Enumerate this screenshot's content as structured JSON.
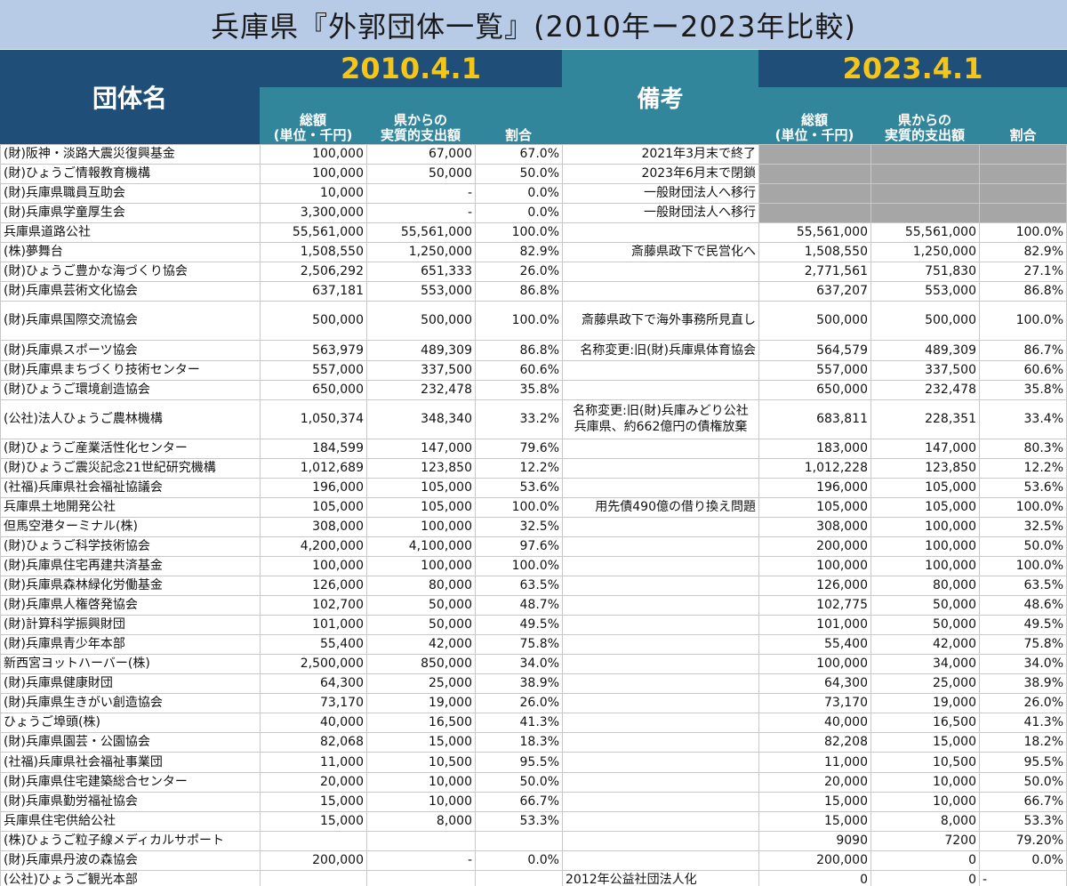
{
  "title": "兵庫県『外郭団体一覧』(2010年ー2023年比較)",
  "header": {
    "name_label": "団体名",
    "note_label": "備考",
    "year_a": "2010.4.1",
    "year_b": "2023.4.1",
    "col_total": "総額\n(単位・千円)",
    "col_pref": "県からの\n実質的支出額",
    "col_ratio": "割合"
  },
  "rows": [
    {
      "name": "(財)阪神・淡路大震災復興基金",
      "t1": "100,000",
      "p1": "67,000",
      "r1": "67.0%",
      "note": "2021年3月末で終了",
      "t2": "",
      "p2": "",
      "r2": "",
      "gray": true
    },
    {
      "name": "(財)ひょうご情報教育機構",
      "t1": "100,000",
      "p1": "50,000",
      "r1": "50.0%",
      "note": "2023年6月末で閉鎖",
      "t2": "",
      "p2": "",
      "r2": "",
      "gray": true
    },
    {
      "name": "(財)兵庫県職員互助会",
      "t1": "10,000",
      "p1": "-",
      "r1": "0.0%",
      "note": "一般財団法人へ移行",
      "t2": "",
      "p2": "",
      "r2": "",
      "gray": true
    },
    {
      "name": "(財)兵庫県学童厚生会",
      "t1": "3,300,000",
      "p1": "-",
      "r1": "0.0%",
      "note": "一般財団法人へ移行",
      "t2": "",
      "p2": "",
      "r2": "",
      "gray": true
    },
    {
      "name": "兵庫県道路公社",
      "t1": "55,561,000",
      "p1": "55,561,000",
      "r1": "100.0%",
      "note": "",
      "t2": "55,561,000",
      "p2": "55,561,000",
      "r2": "100.0%"
    },
    {
      "name": "(株)夢舞台",
      "t1": "1,508,550",
      "p1": "1,250,000",
      "r1": "82.9%",
      "note": "斎藤県政下で民営化へ",
      "t2": "1,508,550",
      "p2": "1,250,000",
      "r2": "82.9%"
    },
    {
      "name": "(財)ひょうご豊かな海づくり協会",
      "t1": "2,506,292",
      "p1": "651,333",
      "r1": "26.0%",
      "note": "",
      "t2": "2,771,561",
      "p2": "751,830",
      "r2": "27.1%"
    },
    {
      "name": "(財)兵庫県芸術文化協会",
      "t1": "637,181",
      "p1": "553,000",
      "r1": "86.8%",
      "note": "",
      "t2": "637,207",
      "p2": "553,000",
      "r2": "86.8%"
    },
    {
      "name": "(財)兵庫県国際交流協会",
      "t1": "500,000",
      "p1": "500,000",
      "r1": "100.0%",
      "note": "斎藤県政下で海外事務所見直し",
      "t2": "500,000",
      "p2": "500,000",
      "r2": "100.0%",
      "tall": true
    },
    {
      "name": "(財)兵庫県スポーツ協会",
      "t1": "563,979",
      "p1": "489,309",
      "r1": "86.8%",
      "note": "名称変更:旧(財)兵庫県体育協会",
      "t2": "564,579",
      "p2": "489,309",
      "r2": "86.7%"
    },
    {
      "name": "(財)兵庫県まちづくり技術センター",
      "t1": "557,000",
      "p1": "337,500",
      "r1": "60.6%",
      "note": "",
      "t2": "557,000",
      "p2": "337,500",
      "r2": "60.6%"
    },
    {
      "name": "(財)ひょうご環境創造協会",
      "t1": "650,000",
      "p1": "232,478",
      "r1": "35.8%",
      "note": "",
      "t2": "650,000",
      "p2": "232,478",
      "r2": "35.8%"
    },
    {
      "name": "(公社)法人ひょうご農林機構",
      "t1": "1,050,374",
      "p1": "348,340",
      "r1": "33.2%",
      "note": "名称変更:旧(財)兵庫みどり公社",
      "note2": "兵庫県、約662億円の債権放棄",
      "t2": "683,811",
      "p2": "228,351",
      "r2": "33.4%",
      "tall": true
    },
    {
      "name": "(財)ひょうご産業活性化センター",
      "t1": "184,599",
      "p1": "147,000",
      "r1": "79.6%",
      "note": "",
      "t2": "183,000",
      "p2": "147,000",
      "r2": "80.3%"
    },
    {
      "name": "(財)ひょうご震災記念21世紀研究機構",
      "t1": "1,012,689",
      "p1": "123,850",
      "r1": "12.2%",
      "note": "",
      "t2": "1,012,228",
      "p2": "123,850",
      "r2": "12.2%"
    },
    {
      "name": "(社福)兵庫県社会福祉協議会",
      "t1": "196,000",
      "p1": "105,000",
      "r1": "53.6%",
      "note": "",
      "t2": "196,000",
      "p2": "105,000",
      "r2": "53.6%"
    },
    {
      "name": "兵庫県土地開発公社",
      "t1": "105,000",
      "p1": "105,000",
      "r1": "100.0%",
      "note": "用先債490億の借り換え問題",
      "t2": "105,000",
      "p2": "105,000",
      "r2": "100.0%"
    },
    {
      "name": "但馬空港ターミナル(株)",
      "t1": "308,000",
      "p1": "100,000",
      "r1": "32.5%",
      "note": "",
      "t2": "308,000",
      "p2": "100,000",
      "r2": "32.5%"
    },
    {
      "name": "(財)ひょうご科学技術協会",
      "t1": "4,200,000",
      "p1": "4,100,000",
      "r1": "97.6%",
      "note": "",
      "t2": "200,000",
      "p2": "100,000",
      "r2": "50.0%"
    },
    {
      "name": "(財)兵庫県住宅再建共済基金",
      "t1": "100,000",
      "p1": "100,000",
      "r1": "100.0%",
      "note": "",
      "t2": "100,000",
      "p2": "100,000",
      "r2": "100.0%"
    },
    {
      "name": "(財)兵庫県森林緑化労働基金",
      "t1": "126,000",
      "p1": "80,000",
      "r1": "63.5%",
      "note": "",
      "t2": "126,000",
      "p2": "80,000",
      "r2": "63.5%"
    },
    {
      "name": "(財)兵庫県人権啓発協会",
      "t1": "102,700",
      "p1": "50,000",
      "r1": "48.7%",
      "note": "",
      "t2": "102,775",
      "p2": "50,000",
      "r2": "48.6%"
    },
    {
      "name": "(財)計算科学振興財団",
      "t1": "101,000",
      "p1": "50,000",
      "r1": "49.5%",
      "note": "",
      "t2": "101,000",
      "p2": "50,000",
      "r2": "49.5%"
    },
    {
      "name": "(財)兵庫県青少年本部",
      "t1": "55,400",
      "p1": "42,000",
      "r1": "75.8%",
      "note": "",
      "t2": "55,400",
      "p2": "42,000",
      "r2": "75.8%"
    },
    {
      "name": "新西宮ヨットハーバー(株)",
      "t1": "2,500,000",
      "p1": "850,000",
      "r1": "34.0%",
      "note": "",
      "t2": "100,000",
      "p2": "34,000",
      "r2": "34.0%"
    },
    {
      "name": "(財)兵庫県健康財団",
      "t1": "64,300",
      "p1": "25,000",
      "r1": "38.9%",
      "note": "",
      "t2": "64,300",
      "p2": "25,000",
      "r2": "38.9%"
    },
    {
      "name": "(財)兵庫県生きがい創造協会",
      "t1": "73,170",
      "p1": "19,000",
      "r1": "26.0%",
      "note": "",
      "t2": "73,170",
      "p2": "19,000",
      "r2": "26.0%"
    },
    {
      "name": "ひょうご埠頭(株)",
      "t1": "40,000",
      "p1": "16,500",
      "r1": "41.3%",
      "note": "",
      "t2": "40,000",
      "p2": "16,500",
      "r2": "41.3%"
    },
    {
      "name": "(財)兵庫県園芸・公園協会",
      "t1": "82,068",
      "p1": "15,000",
      "r1": "18.3%",
      "note": "",
      "t2": "82,208",
      "p2": "15,000",
      "r2": "18.2%"
    },
    {
      "name": "(社福)兵庫県社会福祉事業団",
      "t1": "11,000",
      "p1": "10,500",
      "r1": "95.5%",
      "note": "",
      "t2": "11,000",
      "p2": "10,500",
      "r2": "95.5%"
    },
    {
      "name": "(財)兵庫県住宅建築総合センター",
      "t1": "20,000",
      "p1": "10,000",
      "r1": "50.0%",
      "note": "",
      "t2": "20,000",
      "p2": "10,000",
      "r2": "50.0%"
    },
    {
      "name": "(財)兵庫県勤労福祉協会",
      "t1": "15,000",
      "p1": "10,000",
      "r1": "66.7%",
      "note": "",
      "t2": "15,000",
      "p2": "10,000",
      "r2": "66.7%"
    },
    {
      "name": "兵庫県住宅供給公社",
      "t1": "15,000",
      "p1": "8,000",
      "r1": "53.3%",
      "note": "",
      "t2": "15,000",
      "p2": "8,000",
      "r2": "53.3%"
    },
    {
      "name": "(株)ひょうご粒子線メディカルサポート",
      "t1": "",
      "p1": "",
      "r1": "",
      "note": "",
      "t2": "9090",
      "p2": "7200",
      "r2": "79.20%"
    },
    {
      "name": "(財)兵庫県丹波の森協会",
      "t1": "200,000",
      "p1": "-",
      "r1": "0.0%",
      "note": "",
      "t2": "200,000",
      "p2": "0",
      "r2": "0.0%"
    },
    {
      "name": "(公社)ひょうご観光本部",
      "t1": "",
      "p1": "",
      "r1": "",
      "note": "2012年公益社団法人化",
      "t2": "0",
      "p2": "0",
      "r2": "-",
      "left_note": true,
      "left_r2": true
    }
  ]
}
